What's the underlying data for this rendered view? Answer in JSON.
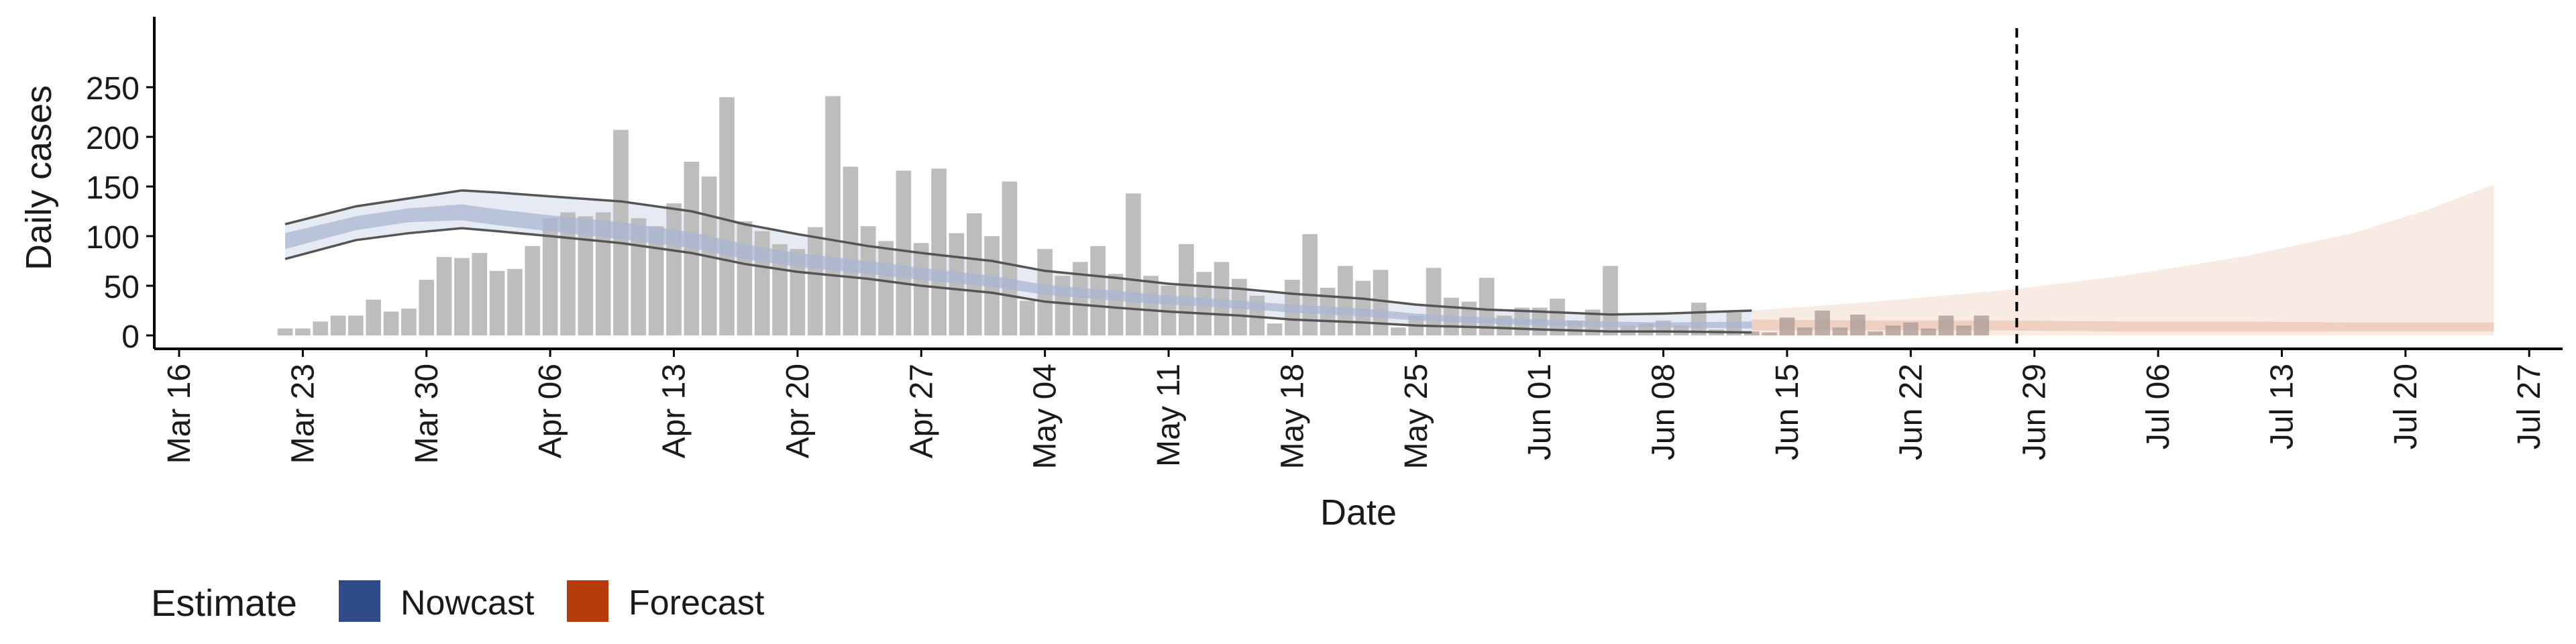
{
  "chart_data": {
    "type": "bar",
    "xlabel": "Date",
    "ylabel": "Daily cases",
    "ylim": [
      0,
      250
    ],
    "y_ticks": [
      0,
      50,
      100,
      150,
      200,
      250
    ],
    "x_ticks": [
      {
        "date": "2020-03-16",
        "label": "Mar 16"
      },
      {
        "date": "2020-03-23",
        "label": "Mar 23"
      },
      {
        "date": "2020-03-30",
        "label": "Mar 30"
      },
      {
        "date": "2020-04-06",
        "label": "Apr 06"
      },
      {
        "date": "2020-04-13",
        "label": "Apr 13"
      },
      {
        "date": "2020-04-20",
        "label": "Apr 20"
      },
      {
        "date": "2020-04-27",
        "label": "Apr 27"
      },
      {
        "date": "2020-05-04",
        "label": "May 04"
      },
      {
        "date": "2020-05-11",
        "label": "May 11"
      },
      {
        "date": "2020-05-18",
        "label": "May 18"
      },
      {
        "date": "2020-05-25",
        "label": "May 25"
      },
      {
        "date": "2020-06-01",
        "label": "Jun 01"
      },
      {
        "date": "2020-06-08",
        "label": "Jun 08"
      },
      {
        "date": "2020-06-15",
        "label": "Jun 15"
      },
      {
        "date": "2020-06-22",
        "label": "Jun 22"
      },
      {
        "date": "2020-06-29",
        "label": "Jun 29"
      },
      {
        "date": "2020-07-06",
        "label": "Jul 06"
      },
      {
        "date": "2020-07-13",
        "label": "Jul 13"
      },
      {
        "date": "2020-07-20",
        "label": "Jul 20"
      },
      {
        "date": "2020-07-27",
        "label": "Jul 27"
      }
    ],
    "x_range": [
      "2020-03-15",
      "2020-07-30"
    ],
    "bars": {
      "start_date": "2020-03-22",
      "values": [
        7,
        7,
        14,
        20,
        20,
        36,
        24,
        27,
        56,
        79,
        78,
        83,
        65,
        67,
        90,
        118,
        124,
        120,
        124,
        207,
        118,
        110,
        133,
        175,
        160,
        240,
        115,
        105,
        92,
        87,
        109,
        241,
        170,
        110,
        95,
        166,
        93,
        168,
        103,
        123,
        100,
        155,
        35,
        87,
        60,
        74,
        90,
        62,
        143,
        60,
        50,
        92,
        64,
        74,
        57,
        40,
        12,
        56,
        102,
        48,
        70,
        55,
        66,
        8,
        20,
        68,
        38,
        34,
        58,
        20,
        28,
        28,
        37,
        15,
        26,
        70,
        10,
        12,
        15,
        10,
        33,
        6,
        23
      ],
      "color": "#bdbdbd"
    },
    "forecast_bars": {
      "start_date": "2020-06-13",
      "values": [
        4,
        3,
        18,
        8,
        25,
        8,
        21,
        4,
        10,
        13,
        7,
        20,
        10,
        20
      ],
      "color": "#a89a94"
    },
    "series": [
      {
        "name": "Nowcast",
        "color": "#2f4b8a",
        "dates": [
          "2020-03-22",
          "2020-03-26",
          "2020-03-29",
          "2020-04-01",
          "2020-04-03",
          "2020-04-06",
          "2020-04-10",
          "2020-04-14",
          "2020-04-17",
          "2020-04-20",
          "2020-04-24",
          "2020-04-27",
          "2020-05-01",
          "2020-05-04",
          "2020-05-08",
          "2020-05-11",
          "2020-05-15",
          "2020-05-18",
          "2020-05-22",
          "2020-05-25",
          "2020-05-29",
          "2020-06-01",
          "2020-06-05",
          "2020-06-08",
          "2020-06-13"
        ],
        "outer_upper": [
          112,
          130,
          138,
          146,
          144,
          140,
          135,
          125,
          112,
          102,
          90,
          83,
          75,
          65,
          58,
          52,
          47,
          42,
          37,
          31,
          26,
          24,
          21,
          22,
          25
        ],
        "outer_lower": [
          77,
          96,
          103,
          108,
          105,
          100,
          93,
          83,
          72,
          64,
          57,
          50,
          43,
          34,
          28,
          24,
          20,
          16,
          13,
          10,
          8,
          6,
          4,
          4,
          3
        ],
        "inner_upper": [
          103,
          120,
          128,
          132,
          127,
          121,
          114,
          104,
          92,
          83,
          75,
          68,
          60,
          51,
          45,
          40,
          35,
          31,
          27,
          22,
          18,
          16,
          14,
          13,
          14
        ],
        "inner_lower": [
          87,
          106,
          114,
          116,
          111,
          105,
          97,
          88,
          77,
          69,
          62,
          56,
          49,
          41,
          35,
          31,
          27,
          23,
          19,
          15,
          12,
          10,
          8,
          8,
          7
        ]
      },
      {
        "name": "Forecast",
        "color": "#b63d0a",
        "dates": [
          "2020-06-13",
          "2020-06-20",
          "2020-06-27",
          "2020-07-04",
          "2020-07-11",
          "2020-07-17",
          "2020-07-21",
          "2020-07-25"
        ],
        "outer_upper": [
          25,
          34,
          45,
          60,
          80,
          103,
          125,
          152
        ],
        "outer_lower": [
          0,
          0,
          0,
          0,
          0,
          0,
          0,
          0
        ],
        "inner_upper": [
          16,
          15,
          15,
          14,
          14,
          13,
          13,
          13
        ],
        "inner_lower": [
          5,
          5,
          5,
          4,
          4,
          4,
          4,
          4
        ]
      }
    ],
    "vline_date": "2020-06-28",
    "grid": false,
    "legend": {
      "title": "Estimate",
      "position": "bottom-left",
      "entries": [
        {
          "label": "Nowcast",
          "color": "#2f4b8a"
        },
        {
          "label": "Forecast",
          "color": "#b63d0a"
        }
      ]
    }
  }
}
